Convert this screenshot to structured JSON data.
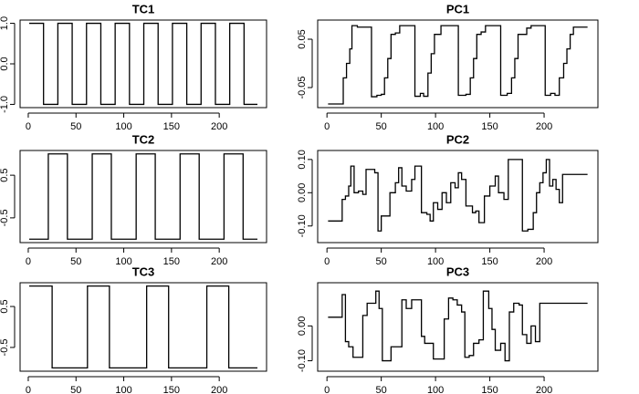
{
  "chart_data": [
    {
      "type": "line",
      "title": "TC1",
      "color": "#000000",
      "step": "post",
      "x": [
        1,
        16,
        31,
        46,
        61,
        76,
        91,
        106,
        121,
        136,
        151,
        166,
        181,
        196,
        211,
        226,
        240
      ],
      "values": [
        1,
        -1,
        1,
        -1,
        1,
        -1,
        1,
        -1,
        1,
        -1,
        1,
        -1,
        1,
        -1,
        1,
        -1,
        -1
      ],
      "xlim": [
        -8.56,
        249.56
      ],
      "xticks": [
        0,
        50,
        100,
        150,
        200
      ],
      "ylim": [
        -1.08,
        1.08
      ],
      "yticks": [
        {
          "value": -1,
          "label": "-1.0"
        },
        {
          "value": 0,
          "label": "0.0"
        },
        {
          "value": 1,
          "label": "1.0"
        }
      ]
    },
    {
      "type": "line",
      "title": "PC1",
      "color": "#000000",
      "step": "post",
      "x": [
        1,
        15,
        18,
        21,
        23,
        28,
        41,
        46,
        50,
        53,
        56,
        59,
        63,
        67,
        81,
        86,
        89,
        93,
        96,
        99,
        105,
        121,
        128,
        132,
        135,
        138,
        142,
        146,
        160,
        166,
        170,
        173,
        176,
        180,
        184,
        188,
        201,
        206,
        210,
        214,
        218,
        221,
        224,
        227,
        240
      ],
      "values": [
        -0.084,
        -0.03,
        0.0,
        0.03,
        0.078,
        0.075,
        -0.069,
        -0.066,
        -0.064,
        -0.03,
        0.01,
        0.06,
        0.063,
        0.078,
        -0.068,
        -0.062,
        -0.068,
        -0.02,
        0.02,
        0.06,
        0.078,
        -0.066,
        -0.064,
        -0.03,
        0.01,
        0.06,
        0.065,
        0.078,
        -0.066,
        -0.062,
        -0.03,
        0.01,
        0.06,
        0.06,
        0.073,
        0.078,
        -0.066,
        -0.062,
        -0.066,
        -0.03,
        0.0,
        0.03,
        0.06,
        0.075,
        0.075
      ],
      "xlim": [
        -8.56,
        249.56
      ],
      "xticks": [
        0,
        50,
        100,
        150,
        200
      ],
      "ylim": [
        -0.0915,
        0.0896
      ],
      "yticks": [
        -0.05,
        0.05
      ]
    },
    {
      "type": "line",
      "title": "TC2",
      "color": "#000000",
      "step": "post",
      "x": [
        1,
        21,
        41,
        67,
        87,
        113,
        133,
        159,
        179,
        205,
        225,
        240
      ],
      "values": [
        -1,
        1,
        -1,
        1,
        -1,
        1,
        -1,
        1,
        -1,
        1,
        -1,
        -1
      ],
      "xlim": [
        -8.56,
        249.56
      ],
      "xticks": [
        0,
        50,
        100,
        150,
        200
      ],
      "ylim": [
        -1.08,
        1.08
      ],
      "yticks": [
        -0.5,
        0.5
      ]
    },
    {
      "type": "line",
      "title": "PC2",
      "color": "#000000",
      "step": "post",
      "x": [
        1,
        14,
        17,
        20,
        22,
        25,
        29,
        33,
        36,
        40,
        44,
        47,
        50,
        56,
        58,
        63,
        66,
        69,
        73,
        78,
        81,
        87,
        92,
        95,
        98,
        102,
        106,
        110,
        114,
        118,
        121,
        124,
        128,
        134,
        137,
        140,
        145,
        150,
        155,
        158,
        163,
        167,
        180,
        185,
        190,
        193,
        196,
        199,
        202,
        205,
        208,
        211,
        214,
        217,
        240
      ],
      "values": [
        -0.085,
        -0.02,
        -0.01,
        0.02,
        0.08,
        0.0,
        0.005,
        -0.005,
        0.07,
        0.07,
        0.06,
        -0.115,
        -0.07,
        -0.07,
        0.0,
        0.03,
        0.075,
        0.02,
        0.005,
        0.04,
        0.08,
        -0.06,
        -0.065,
        -0.085,
        -0.03,
        -0.05,
        0.0,
        -0.03,
        0.03,
        0.015,
        0.06,
        0.04,
        -0.04,
        -0.06,
        -0.055,
        -0.09,
        -0.01,
        0.02,
        0.05,
        0.0,
        -0.02,
        0.1,
        -0.115,
        -0.11,
        -0.06,
        0.0,
        0.03,
        0.06,
        0.1,
        0.02,
        0.04,
        0.01,
        -0.03,
        0.055,
        0.055
      ],
      "xlim": [
        -8.56,
        249.56
      ],
      "xticks": [
        0,
        50,
        100,
        150,
        200
      ],
      "ylim": [
        -0.15,
        0.127
      ],
      "yticks": [
        {
          "value": -0.1,
          "label": "-0.10"
        },
        {
          "value": 0,
          "label": "0.00"
        },
        {
          "value": 0.1,
          "label": "0.10"
        }
      ]
    },
    {
      "type": "line",
      "title": "TC3",
      "color": "#000000",
      "step": "post",
      "x": [
        1,
        25,
        62,
        85,
        124,
        147,
        187,
        210,
        240
      ],
      "values": [
        1,
        -1,
        1,
        -1,
        1,
        -1,
        1,
        -1,
        -1
      ],
      "xlim": [
        -8.56,
        249.56
      ],
      "xticks": [
        0,
        50,
        100,
        150,
        200
      ],
      "ylim": [
        -1.08,
        1.08
      ],
      "yticks": [
        -0.5,
        0.5
      ]
    },
    {
      "type": "line",
      "title": "PC3",
      "color": "#000000",
      "step": "post",
      "x": [
        1,
        14,
        17,
        20,
        24,
        30,
        33,
        37,
        42,
        45,
        48,
        51,
        56,
        59,
        66,
        69,
        73,
        78,
        83,
        87,
        90,
        95,
        98,
        105,
        108,
        112,
        116,
        120,
        124,
        127,
        131,
        135,
        140,
        144,
        149,
        152,
        155,
        160,
        164,
        168,
        172,
        177,
        180,
        184,
        188,
        192,
        196,
        202,
        240
      ],
      "values": [
        0.025,
        0.09,
        -0.045,
        -0.06,
        -0.09,
        -0.09,
        0.03,
        0.065,
        0.065,
        0.1,
        0.05,
        -0.1,
        -0.1,
        -0.06,
        -0.06,
        0.075,
        0.05,
        0.075,
        0.075,
        -0.03,
        -0.05,
        -0.05,
        -0.095,
        -0.095,
        0.02,
        0.08,
        0.075,
        0.06,
        0.04,
        -0.09,
        -0.085,
        -0.05,
        -0.04,
        0.1,
        0.05,
        -0.01,
        -0.07,
        -0.05,
        -0.1,
        0.04,
        0.065,
        0.06,
        -0.025,
        -0.05,
        0.0,
        -0.045,
        0.065,
        0.065,
        0.065
      ],
      "xlim": [
        -8.56,
        249.56
      ],
      "xticks": [
        0,
        50,
        100,
        150,
        200
      ],
      "ylim": [
        -0.13,
        0.124
      ],
      "yticks": [
        {
          "value": -0.1,
          "label": "-0.10"
        },
        {
          "value": 0,
          "label": "0.00"
        }
      ]
    }
  ]
}
